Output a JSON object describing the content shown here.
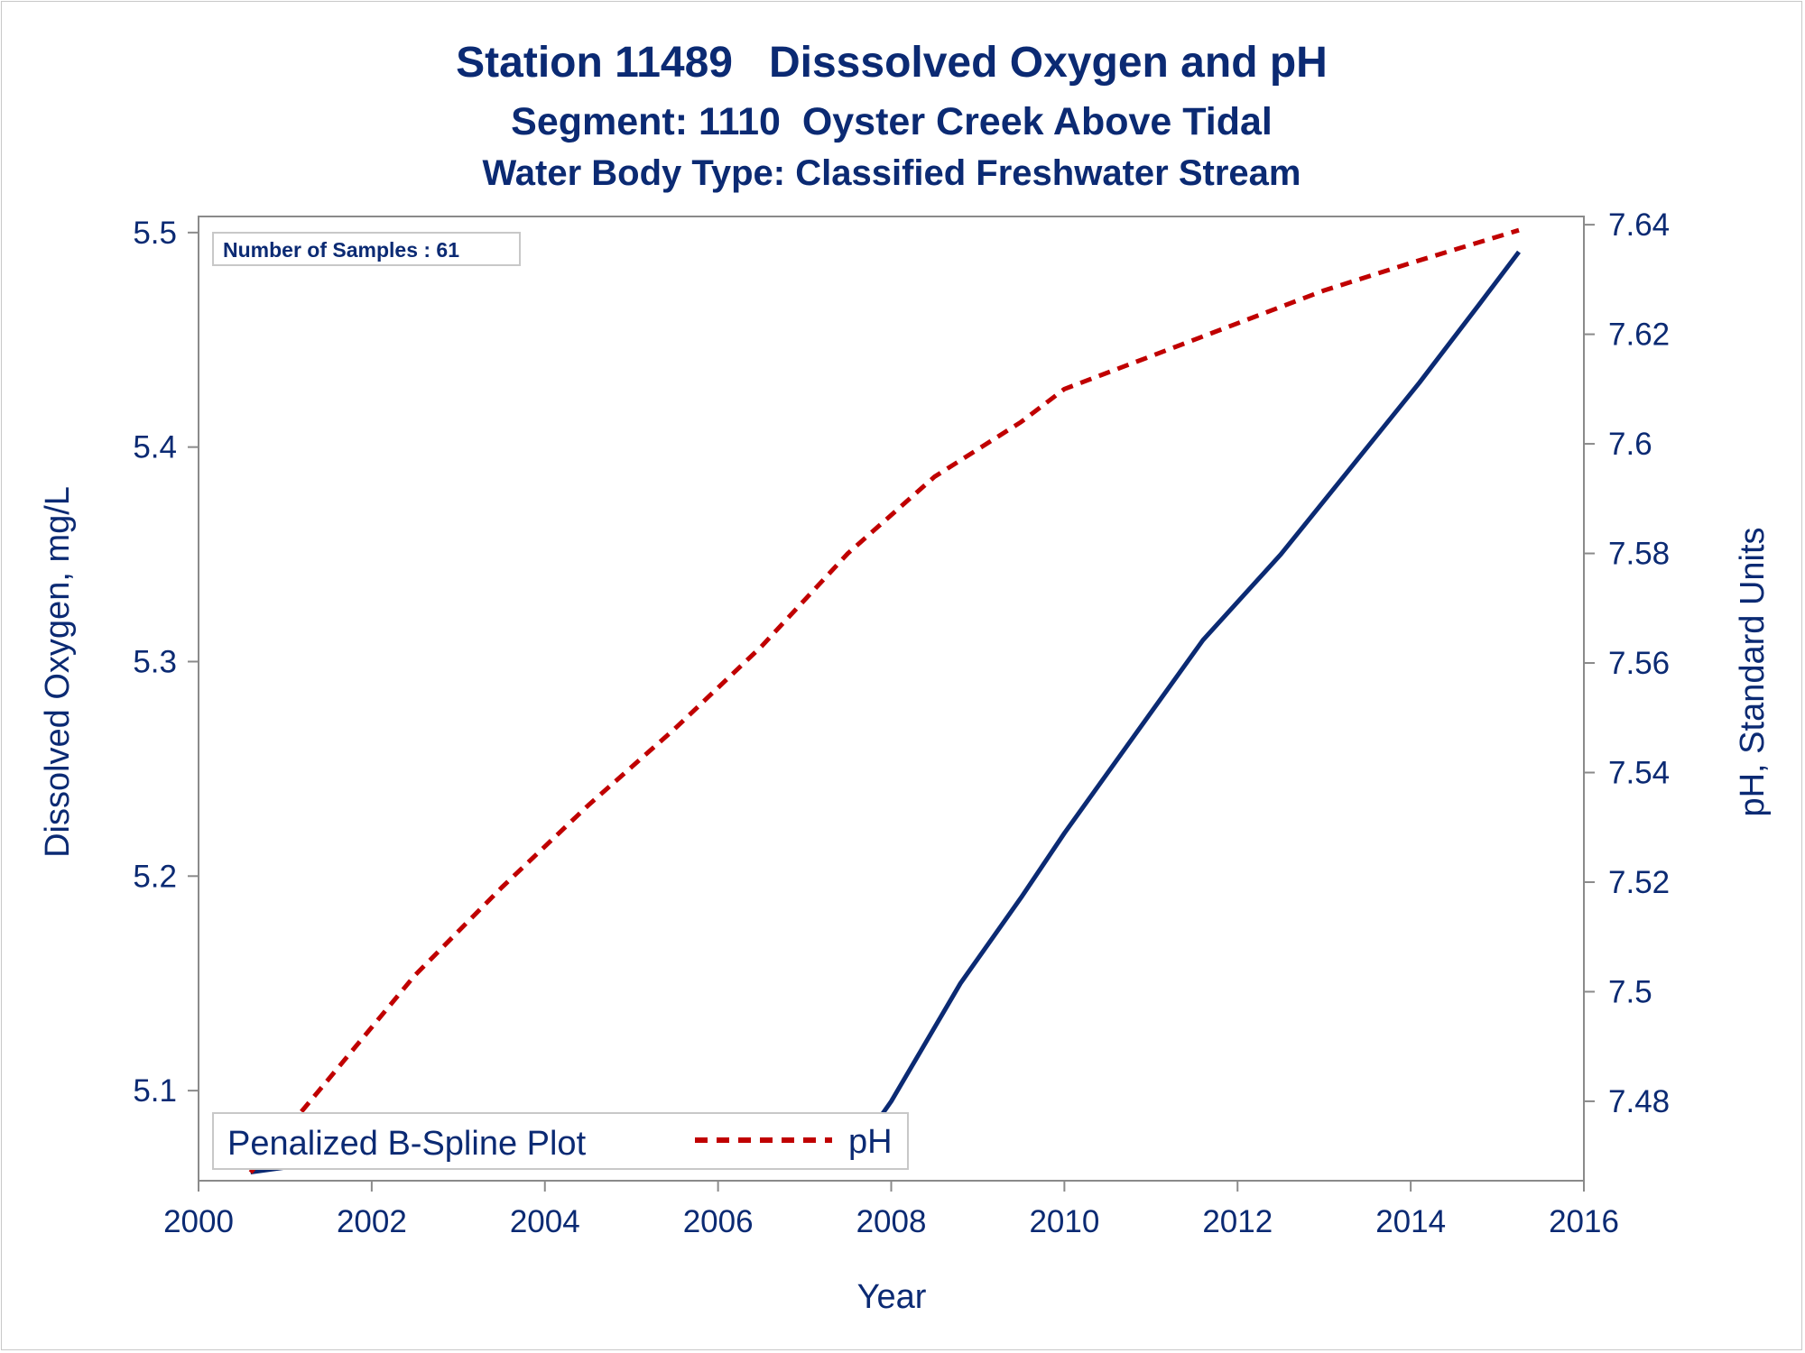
{
  "chart_data": {
    "type": "line",
    "title": "Station 11489   Disssolved Oxygen and pH",
    "subtitle": "Segment: 1110  Oyster Creek Above Tidal",
    "subtitle2": "Water Body Type: Classified Freshwater Stream",
    "xlabel": "Year",
    "ylabel": "Dissolved Oxygen, mg/L",
    "y2label": "pH, Standard Units",
    "xlim": [
      2000,
      2016
    ],
    "ylim": [
      5.058,
      5.5075
    ],
    "y2lim": [
      7.4655,
      7.6415
    ],
    "x_ticks": [
      2000,
      2002,
      2004,
      2006,
      2008,
      2010,
      2012,
      2014,
      2016
    ],
    "y_ticks": [
      5.1,
      5.2,
      5.3,
      5.4,
      5.5
    ],
    "y_tick_labels": [
      "5.1",
      "5.2",
      "5.3",
      "5.4",
      "5.5"
    ],
    "y2_ticks": [
      7.48,
      7.5,
      7.52,
      7.54,
      7.56,
      7.58,
      7.6,
      7.62,
      7.64
    ],
    "y2_tick_labels": [
      "7.48",
      "7.5",
      "7.52",
      "7.54",
      "7.56",
      "7.58",
      "7.6",
      "7.62",
      "7.64"
    ],
    "grid": false,
    "inset_text": "Number of Samples : 61",
    "legend": {
      "title": "Penalized B-Spline Plot",
      "placement": "bottom-left",
      "entries": [
        {
          "label": "pH",
          "series": "ph"
        }
      ]
    },
    "series": [
      {
        "key": "do",
        "axis": "left",
        "color": "#0b2a73",
        "style": "solid",
        "x": [
          2000.6,
          2001.5,
          2002.5,
          2003.5,
          2004.4,
          2005.3,
          2006.3,
          2007.6,
          2008.0,
          2008.8,
          2009.5,
          2010.0,
          2010.8,
          2011.6,
          2012.5,
          2013.3,
          2014.1,
          2014.8,
          2015.25
        ],
        "y": [
          5.062,
          5.067,
          5.074,
          5.08,
          5.084,
          5.079,
          5.075,
          5.072,
          5.095,
          5.15,
          5.19,
          5.22,
          5.265,
          5.31,
          5.35,
          5.39,
          5.43,
          5.467,
          5.491
        ]
      },
      {
        "key": "ph",
        "name": "pH",
        "axis": "right",
        "color": "#c00000",
        "style": "dashed",
        "x": [
          2000.6,
          2001.5,
          2002.5,
          2003.5,
          2004.5,
          2005.5,
          2006.5,
          2007.5,
          2008.5,
          2009.5,
          2010.0,
          2011.0,
          2012.0,
          2013.0,
          2014.0,
          2015.25
        ],
        "y": [
          7.467,
          7.484,
          7.503,
          7.519,
          7.534,
          7.548,
          7.563,
          7.58,
          7.594,
          7.604,
          7.61,
          7.616,
          7.622,
          7.628,
          7.633,
          7.639
        ]
      }
    ]
  }
}
